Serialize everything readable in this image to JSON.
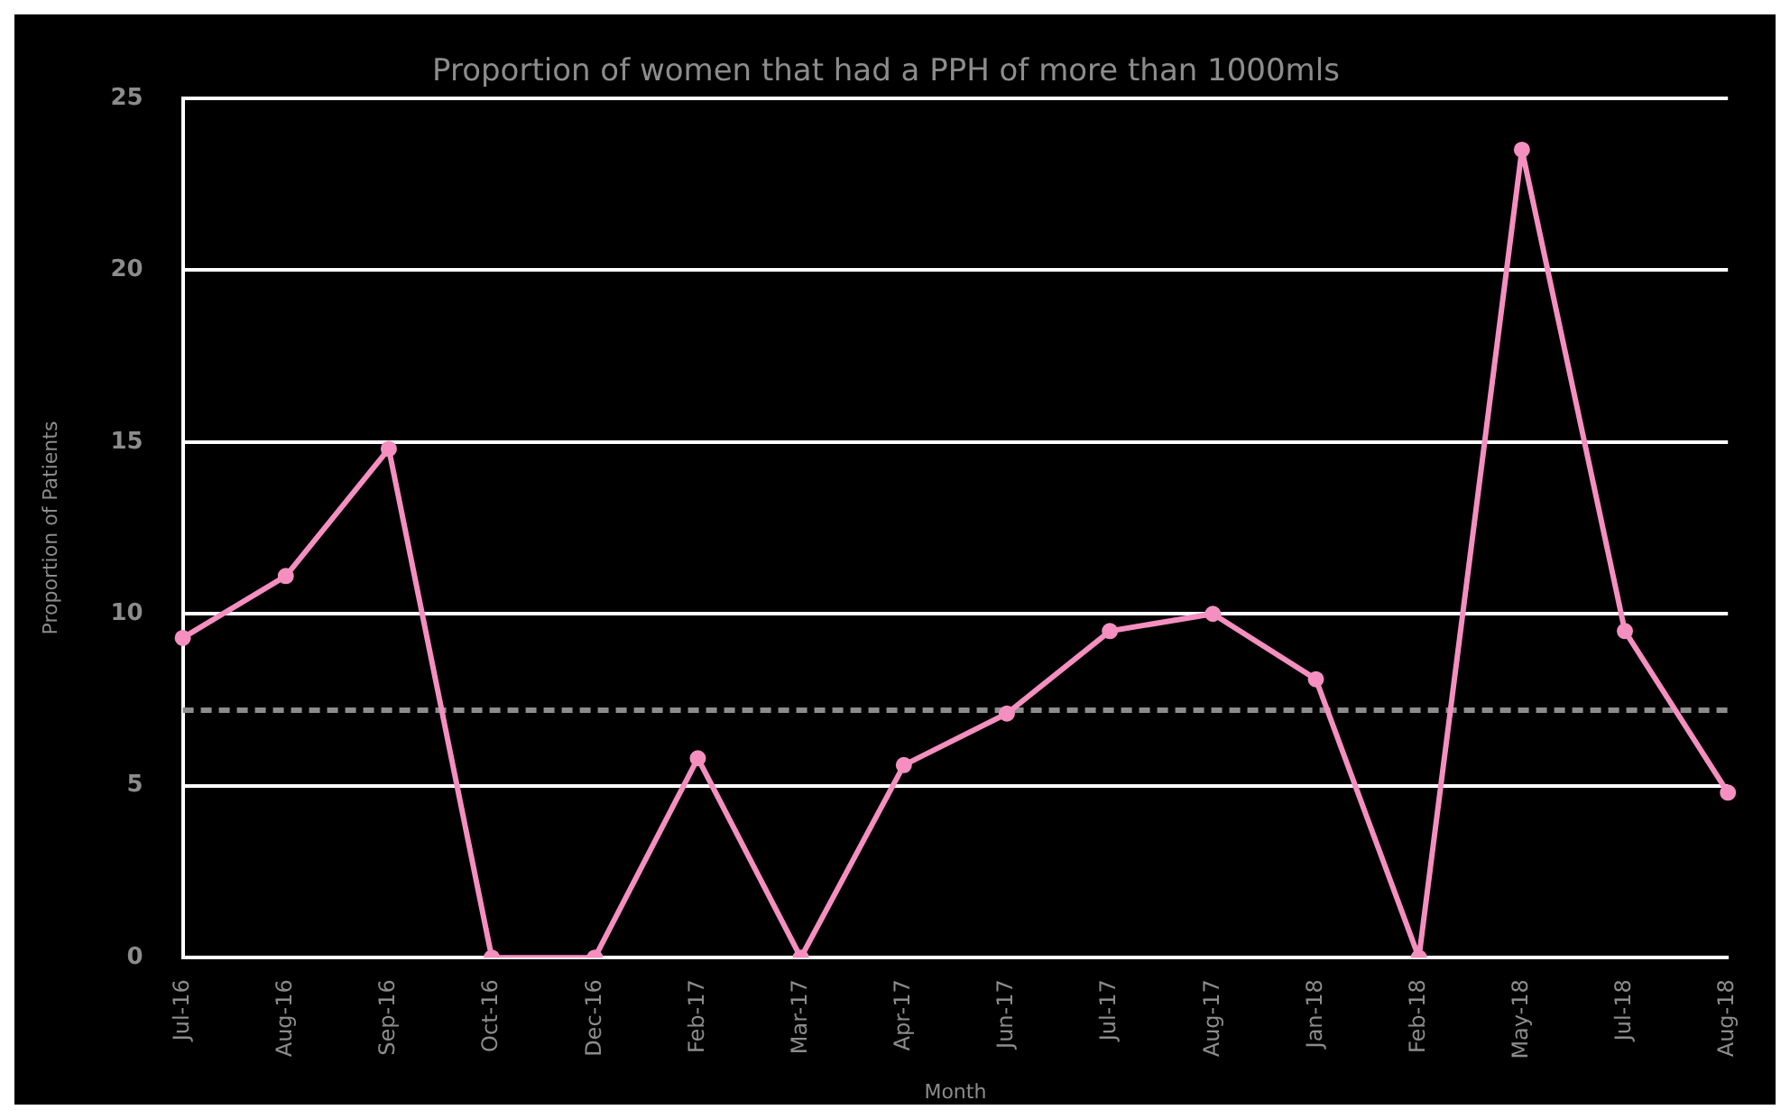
{
  "chart_data": {
    "type": "line",
    "title": "Proportion of women that had a PPH of more than 1000mls",
    "xlabel": "Month",
    "ylabel": "Proportion of Patients",
    "categories": [
      "Jul-16",
      "Aug-16",
      "Sep-16",
      "Oct-16",
      "Dec-16",
      "Feb-17",
      "Mar-17",
      "Apr-17",
      "Jun-17",
      "Jul-17",
      "Aug-17",
      "Jan-18",
      "Feb-18",
      "May-18",
      "Jul-18",
      "Aug-18"
    ],
    "series": [
      {
        "color": "#f48fc0",
        "values": [
          9.3,
          11.1,
          14.8,
          0,
          0,
          5.8,
          0,
          5.6,
          7.1,
          9.5,
          10,
          8.1,
          0,
          23.5,
          9.5,
          4.8
        ]
      }
    ],
    "ylim": [
      0,
      25
    ],
    "yticks": [
      0,
      5,
      10,
      15,
      20,
      25
    ],
    "grid": "y",
    "legend": false,
    "marker": "circle",
    "line_style": "solid",
    "ref_lines": [
      {
        "axis": "y",
        "value": 7.2,
        "color": "#8c8c8c",
        "line_style": "dashed"
      }
    ]
  }
}
